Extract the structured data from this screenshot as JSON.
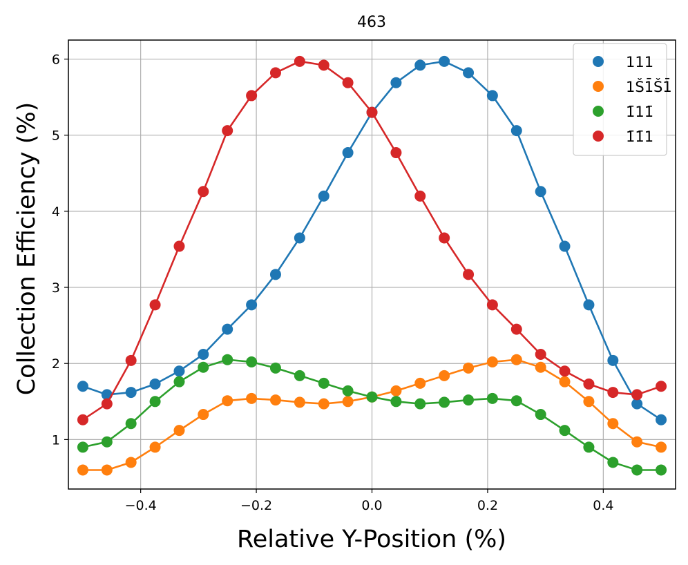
{
  "chart_data": {
    "type": "line",
    "title": "463",
    "xlabel": "Relative Y-Position (%)",
    "ylabel": "Collection Efficiency (%)",
    "xlim": [
      -0.525,
      0.525
    ],
    "ylim": [
      0.35,
      6.25
    ],
    "xticks": [
      -0.4,
      -0.2,
      0.0,
      0.2,
      0.4
    ],
    "xtick_labels": [
      "−0.4",
      "−0.2",
      "0.0",
      "0.2",
      "0.4"
    ],
    "yticks": [
      1,
      2,
      3,
      4,
      5,
      6
    ],
    "ytick_labels": [
      "1",
      "2",
      "3",
      "4",
      "5",
      "6"
    ],
    "grid": true,
    "legend_position": "top-right",
    "x": [
      -0.5,
      -0.4583,
      -0.4167,
      -0.375,
      -0.3333,
      -0.2917,
      -0.25,
      -0.2083,
      -0.1667,
      -0.125,
      -0.0833,
      -0.0417,
      0.0,
      0.0417,
      0.0833,
      0.125,
      0.1667,
      0.2083,
      0.25,
      0.2917,
      0.3333,
      0.375,
      0.4167,
      0.4583,
      0.5
    ],
    "series": [
      {
        "name": "111",
        "label": "111",
        "color": "#1f77b4",
        "values": [
          1.7,
          1.59,
          1.62,
          1.73,
          1.9,
          2.12,
          2.45,
          2.77,
          3.17,
          3.65,
          4.2,
          4.77,
          5.3,
          5.69,
          5.92,
          5.97,
          5.82,
          5.52,
          5.06,
          4.26,
          3.54,
          2.77,
          2.04,
          1.47,
          1.26
        ]
      },
      {
        "name": "1-1-1",
        "label": "1Š1̄Š1̄",
        "color": "#ff7f0e",
        "values": [
          0.6,
          0.6,
          0.7,
          0.9,
          1.12,
          1.33,
          1.51,
          1.54,
          1.52,
          1.49,
          1.47,
          1.5,
          1.56,
          1.64,
          1.74,
          1.84,
          1.94,
          2.02,
          2.05,
          1.95,
          1.76,
          1.5,
          1.21,
          0.97,
          0.9
        ]
      },
      {
        "name": "-11-1",
        "label": "1̄11̄",
        "color": "#2ca02c",
        "values": [
          0.9,
          0.97,
          1.21,
          1.5,
          1.76,
          1.95,
          2.05,
          2.02,
          1.94,
          1.84,
          1.74,
          1.64,
          1.56,
          1.5,
          1.47,
          1.49,
          1.52,
          1.54,
          1.51,
          1.33,
          1.12,
          0.9,
          0.7,
          0.6,
          0.6
        ]
      },
      {
        "name": "-1-11",
        "label": "1̄1̄1",
        "color": "#d62728",
        "values": [
          1.26,
          1.47,
          2.04,
          2.77,
          3.54,
          4.26,
          5.06,
          5.52,
          5.82,
          5.97,
          5.92,
          5.69,
          5.3,
          4.77,
          4.2,
          3.65,
          3.17,
          2.77,
          2.45,
          2.12,
          1.9,
          1.73,
          1.62,
          1.59,
          1.7
        ]
      }
    ]
  }
}
